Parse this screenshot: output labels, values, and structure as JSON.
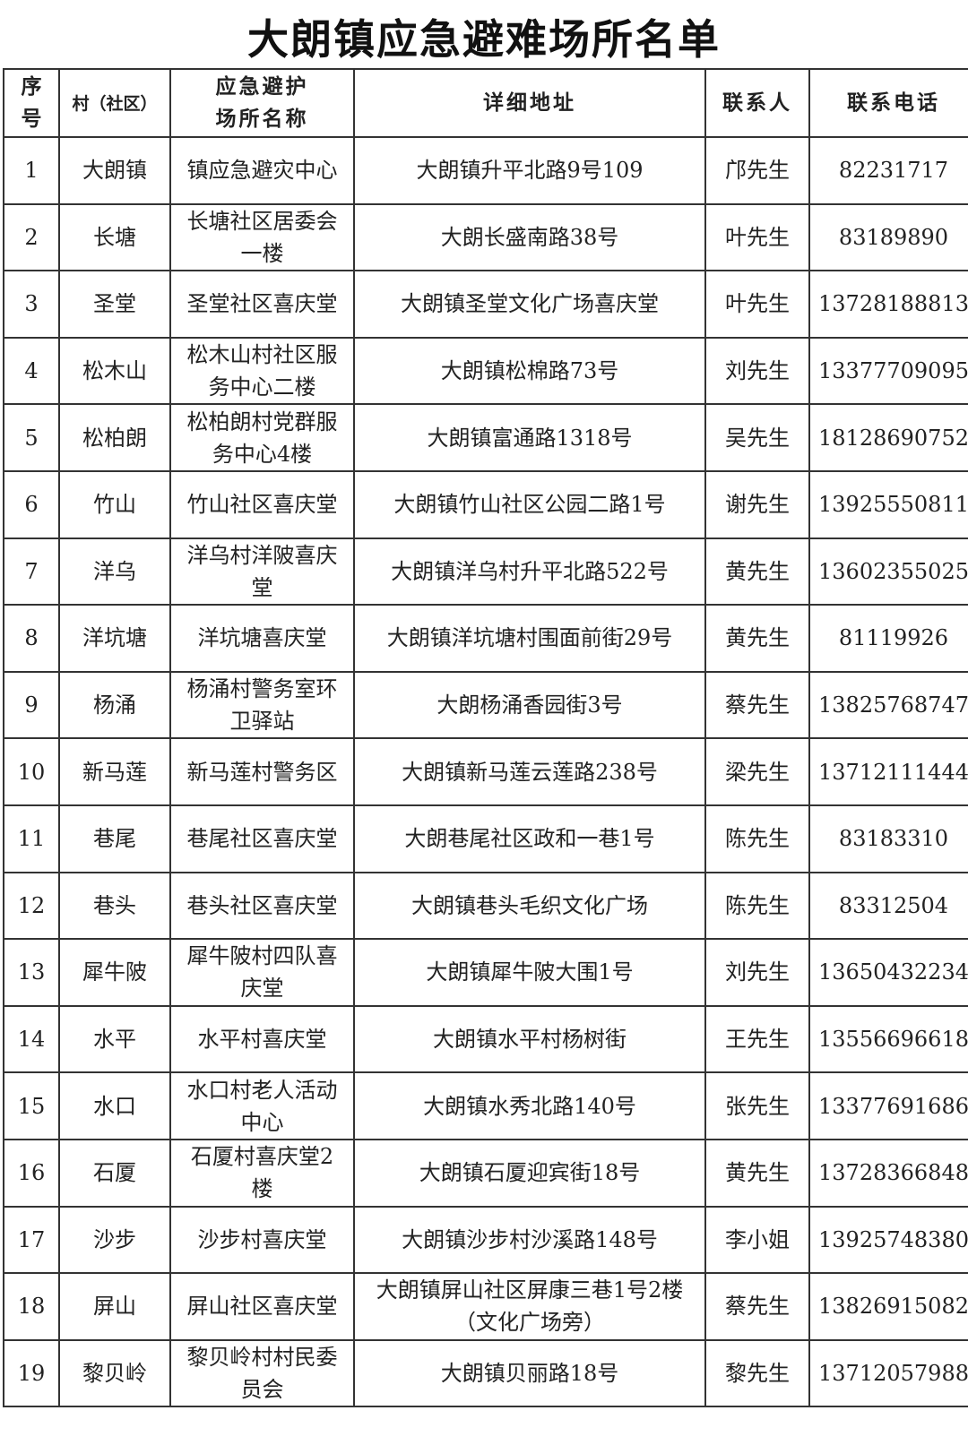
{
  "title": "大朗镇应急避难场所名单",
  "headers": [
    "序号",
    "村（社区）",
    "应急避护场所名称",
    "详细地址",
    "联系人",
    "联系电话"
  ],
  "rows": [
    [
      "1",
      "大朗镇",
      "镇应急避灾中心",
      "大朗镇升平北路9号109",
      "邝先生",
      "82231717"
    ],
    [
      "2",
      "长塘",
      "长塘社区居委会一楼",
      "大朗长盛南路38号",
      "叶先生",
      "83189890"
    ],
    [
      "3",
      "圣堂",
      "圣堂社区喜庆堂",
      "大朗镇圣堂文化广场喜庆堂",
      "叶先生",
      "13728188813"
    ],
    [
      "4",
      "松木山",
      "松木山村社区服务中心二楼",
      "大朗镇松棉路73号",
      "刘先生",
      "13377709095"
    ],
    [
      "5",
      "松柏朗",
      "松柏朗村党群服务中心4楼",
      "大朗镇富通路1318号",
      "吴先生",
      "18128690752"
    ],
    [
      "6",
      "竹山",
      "竹山社区喜庆堂",
      "大朗镇竹山社区公园二路1号",
      "谢先生",
      "13925550811"
    ],
    [
      "7",
      "洋乌",
      "洋乌村洋陂喜庆堂",
      "大朗镇洋乌村升平北路522号",
      "黄先生",
      "13602355025"
    ],
    [
      "8",
      "洋坑塘",
      "洋坑塘喜庆堂",
      "大朗镇洋坑塘村围面前街29号",
      "黄先生",
      "81119926"
    ],
    [
      "9",
      "杨涌",
      "杨涌村警务室环卫驿站",
      "大朗杨涌香园街3号",
      "蔡先生",
      "13825768747"
    ],
    [
      "10",
      "新马莲",
      "新马莲村警务区",
      "大朗镇新马莲云莲路238号",
      "梁先生",
      "13712111444"
    ],
    [
      "11",
      "巷尾",
      "巷尾社区喜庆堂",
      "大朗巷尾社区政和一巷1号",
      "陈先生",
      "83183310"
    ],
    [
      "12",
      "巷头",
      "巷头社区喜庆堂",
      "大朗镇巷头毛织文化广场",
      "陈先生",
      "83312504"
    ],
    [
      "13",
      "犀牛陂",
      "犀牛陂村四队喜庆堂",
      "大朗镇犀牛陂大围1号",
      "刘先生",
      "13650432234"
    ],
    [
      "14",
      "水平",
      "水平村喜庆堂",
      "大朗镇水平村杨树街",
      "王先生",
      "13556696618"
    ],
    [
      "15",
      "水口",
      "水口村老人活动中心",
      "大朗镇水秀北路140号",
      "张先生",
      "13377691686"
    ],
    [
      "16",
      "石厦",
      "石厦村喜庆堂2楼",
      "大朗镇石厦迎宾街18号",
      "黄先生",
      "13728366848"
    ],
    [
      "17",
      "沙步",
      "沙步村喜庆堂",
      "大朗镇沙步村沙溪路148号",
      "李小姐",
      "13925748380"
    ],
    [
      "18",
      "屏山",
      "屏山社区喜庆堂",
      "大朗镇屏山社区屏康三巷1号2楼（文化广场旁）",
      "蔡先生",
      "13826915082"
    ],
    [
      "19",
      "黎贝岭",
      "黎贝岭村村民委员会",
      "大朗镇贝丽路18号",
      "黎先生",
      "13712057988"
    ]
  ]
}
